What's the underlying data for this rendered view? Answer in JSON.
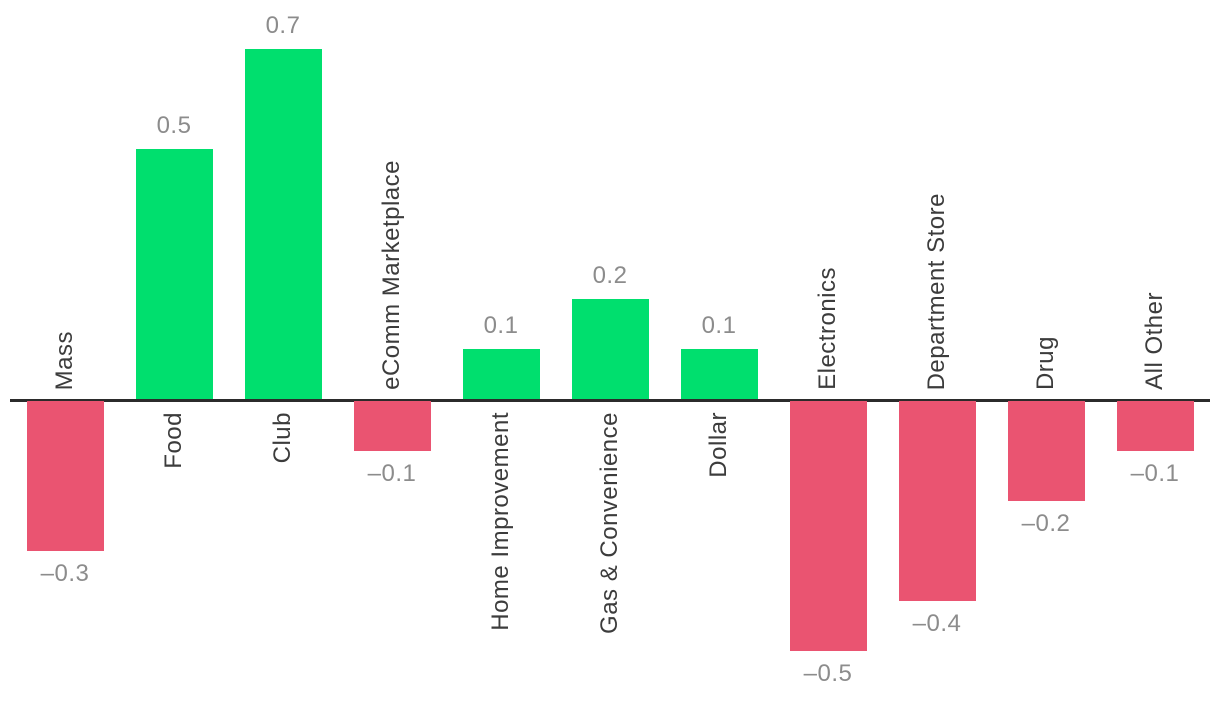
{
  "chart_data": {
    "type": "bar",
    "title": "",
    "xlabel": "",
    "ylabel": "",
    "categories": [
      "Mass",
      "Food",
      "Club",
      "eComm Marketplace",
      "Home Improvement",
      "Gas & Convenience",
      "Dollar",
      "Electronics",
      "Department Store",
      "Drug",
      "All Other"
    ],
    "values": [
      -0.3,
      0.5,
      0.7,
      -0.1,
      0.1,
      0.2,
      0.1,
      -0.5,
      -0.4,
      -0.2,
      -0.1
    ],
    "value_labels": [
      "–0.3",
      "0.5",
      "0.7",
      "–0.1",
      "0.1",
      "0.2",
      "0.1",
      "–0.5",
      "–0.4",
      "–0.2",
      "–0.1"
    ],
    "ylim": [
      -0.5,
      0.7
    ],
    "grid": false,
    "legend": "none",
    "axis_ticks": "none",
    "colors": {
      "positive": "#00DF6E",
      "negative": "#EA5471",
      "axis": "#2B2B2B",
      "value_label": "#8C8C8C",
      "category_label": "#3C3C3C"
    }
  }
}
